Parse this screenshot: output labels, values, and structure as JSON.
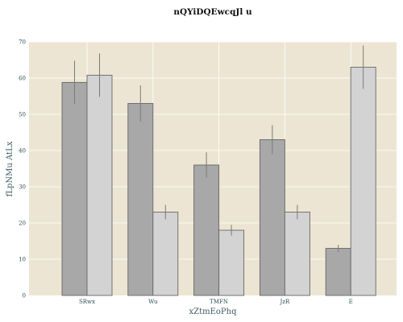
{
  "chart_data": {
    "type": "bar",
    "title": "nQYiDQEwcqJl u",
    "xlabel": "xZtmEoPhq",
    "ylabel": "fLpNMu AtLx",
    "categories": [
      "SRwx",
      "Wu",
      "TMFN",
      "JzR",
      "E"
    ],
    "ylim": [
      0,
      70
    ],
    "yticks": [
      0,
      10,
      20,
      30,
      40,
      50,
      60,
      70
    ],
    "grid": true,
    "colors": {
      "background": "#ede5d3",
      "series_1": "#a8a8a8",
      "series_2": "#d3d3d3"
    },
    "series": [
      {
        "values": [
          58.8,
          53,
          36,
          43,
          13
        ],
        "errors": [
          6,
          5,
          3.5,
          4,
          1
        ]
      },
      {
        "values": [
          60.8,
          23,
          18,
          23,
          63
        ],
        "errors": [
          6,
          2,
          1.5,
          2,
          6
        ]
      }
    ]
  }
}
